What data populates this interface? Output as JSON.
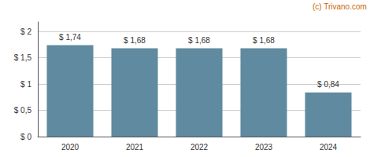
{
  "chart_data": {
    "type": "bar",
    "categories": [
      "2020",
      "2021",
      "2022",
      "2023",
      "2024"
    ],
    "values": [
      1.74,
      1.68,
      1.68,
      1.68,
      0.84
    ],
    "value_labels": [
      "$ 1,74",
      "$ 1,68",
      "$ 1,68",
      "$ 1,68",
      "$ 0,84"
    ],
    "data_labels": true,
    "color": "#5f8aa0",
    "ylim": [
      0,
      2.18
    ],
    "yticks": [
      {
        "value": 0,
        "label": "$ 0"
      },
      {
        "value": 0.5,
        "label": "$ 0,5"
      },
      {
        "value": 1.0,
        "label": "$ 1"
      },
      {
        "value": 1.5,
        "label": "$ 1,5"
      },
      {
        "value": 2.0,
        "label": "$ 2"
      }
    ],
    "grid": true,
    "annotations": [
      {
        "text": "(c) Trivano.com",
        "color": "#cc6600"
      }
    ]
  }
}
